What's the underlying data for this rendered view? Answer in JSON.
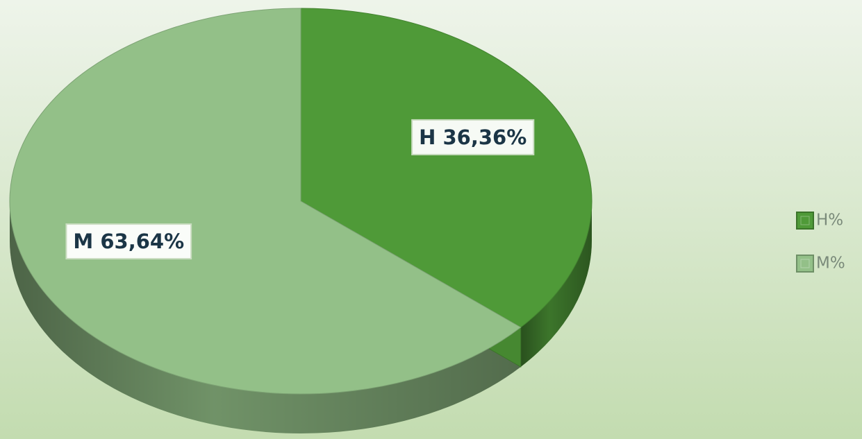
{
  "chart_data": {
    "type": "pie3d",
    "categories": [
      "H%",
      "M%"
    ],
    "values": [
      36.36,
      63.64
    ],
    "value_labels": [
      "H 36,36%",
      "M  63,64%"
    ],
    "colors": [
      "#4f9a38",
      "#93c088"
    ],
    "legend": "right"
  }
}
